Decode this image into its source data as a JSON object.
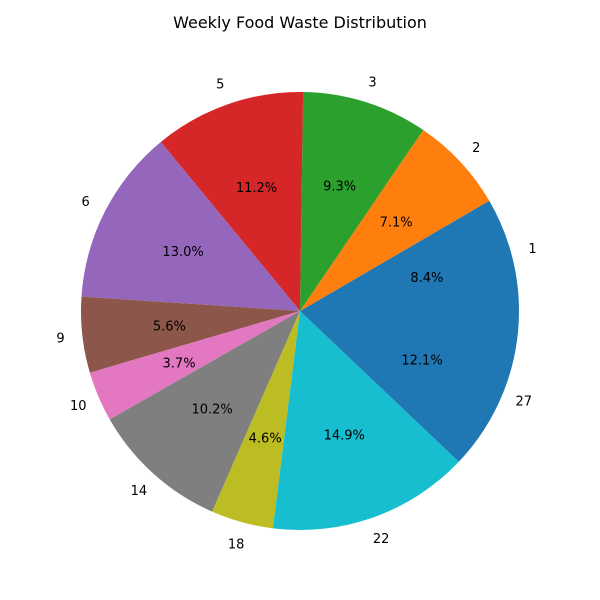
{
  "chart_data": {
    "type": "pie",
    "title": "Weekly Food Waste Distribution",
    "categories": [
      "1",
      "2",
      "3",
      "5",
      "6",
      "9",
      "10",
      "14",
      "18",
      "22",
      "27"
    ],
    "values": [
      8.4,
      7.1,
      9.3,
      11.2,
      13.0,
      5.6,
      3.7,
      10.2,
      4.6,
      14.9,
      12.1
    ],
    "percent_labels": [
      "8.4%",
      "7.1%",
      "9.3%",
      "11.2%",
      "13.0%",
      "5.6%",
      "3.7%",
      "10.2%",
      "4.6%",
      "14.9%",
      "12.1%"
    ],
    "colors": [
      "#1f77b4",
      "#ff7f0e",
      "#2ca02c",
      "#d62728",
      "#9467bd",
      "#8c564b",
      "#e377c2",
      "#7f7f7f",
      "#bcbd22",
      "#17becf",
      "#1f77b4"
    ],
    "start_angle_deg": 0,
    "direction": "counterclockwise",
    "legend": "none"
  }
}
